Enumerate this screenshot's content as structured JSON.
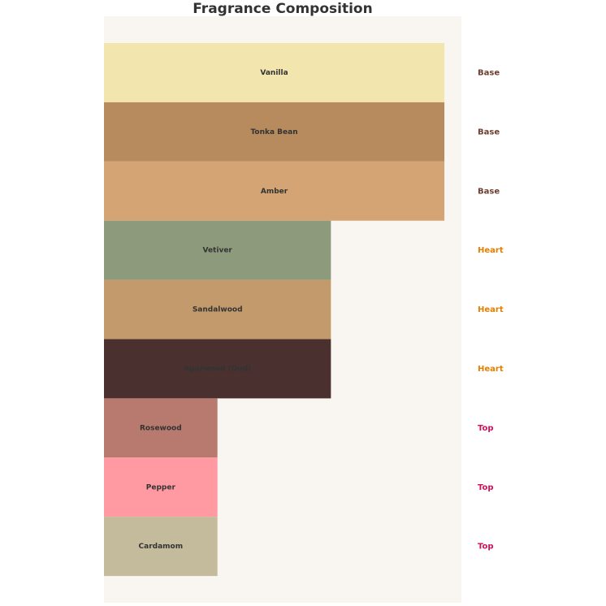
{
  "chart_data": {
    "type": "bar",
    "orientation": "horizontal",
    "title": "Fragrance Composition",
    "categories": [
      "Vanilla",
      "Tonka Bean",
      "Amber",
      "Vetiver",
      "Sandalwood",
      "Agarwood (Oud)",
      "Rosewood",
      "Pepper",
      "Cardamom"
    ],
    "values": [
      3,
      3,
      3,
      2,
      2,
      2,
      1,
      1,
      1
    ],
    "colors": [
      "#f3e5ae",
      "#b78b5e",
      "#d4a475",
      "#8e9a7c",
      "#c29a6c",
      "#4a302e",
      "#b87a6e",
      "#ff9aa2",
      "#c4bb9c"
    ],
    "annotations": [
      "Base",
      "Base",
      "Base",
      "Heart",
      "Heart",
      "Heart",
      "Top",
      "Top",
      "Top"
    ],
    "annotation_colors": [
      "#6b3e2e",
      "#6b3e2e",
      "#6b3e2e",
      "#e67e00",
      "#e67e00",
      "#e67e00",
      "#d0105a",
      "#d0105a",
      "#d0105a"
    ],
    "xlim": [
      0,
      3.15
    ],
    "background": "#f9f6f1"
  }
}
